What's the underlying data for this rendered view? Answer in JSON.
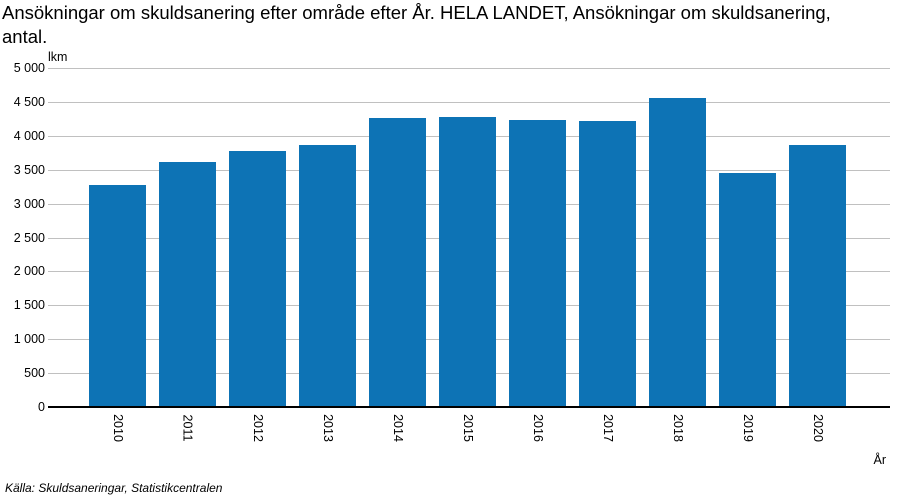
{
  "title": "Ansökningar om skuldsanering efter område efter År. HELA LANDET, Ansökningar om skuldsanering, antal.",
  "source": "Källa: Skuldsaneringar, Statistikcentralen",
  "chart_data": {
    "type": "bar",
    "title": "Ansökningar om skuldsanering efter område efter År. HELA LANDET, Ansökningar om skuldsanering, antal.",
    "unit_label": "lkm",
    "xlabel": "År",
    "categories": [
      "2010",
      "2011",
      "2012",
      "2013",
      "2014",
      "2015",
      "2016",
      "2017",
      "2018",
      "2019",
      "2020"
    ],
    "values": [
      3270,
      3620,
      3780,
      3870,
      4260,
      4280,
      4230,
      4220,
      4560,
      3450,
      3870
    ],
    "ylim": [
      0,
      5000
    ],
    "ytick_values": [
      0,
      500,
      1000,
      1500,
      2000,
      2500,
      3000,
      3500,
      4000,
      4500,
      5000
    ],
    "ytick_labels": [
      "0",
      "500",
      "1 000",
      "1 500",
      "2 000",
      "2 500",
      "3 000",
      "3 500",
      "4 000",
      "4 500",
      "5 000"
    ],
    "grid": true,
    "legend": false,
    "bar_color": "#0d73b5",
    "gridline_color": "#c0c0c0",
    "axis_line_color": "#000000",
    "text_color": "#000000"
  }
}
